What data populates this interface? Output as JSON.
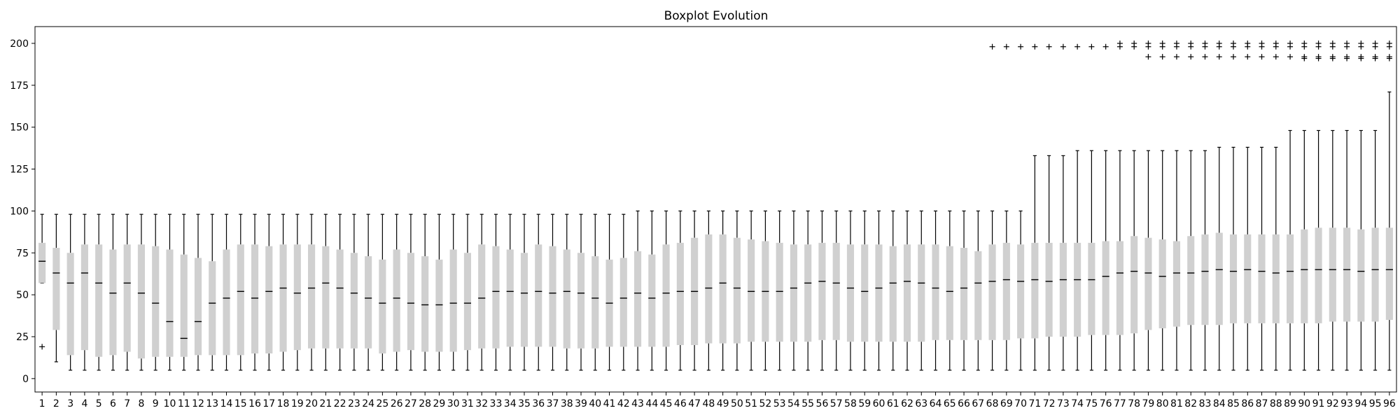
{
  "chart_data": {
    "type": "boxplot",
    "title": "Boxplot Evolution",
    "xlabel": "",
    "ylabel": "",
    "ylim": [
      -8,
      210
    ],
    "yticks": [
      0,
      25,
      50,
      75,
      100,
      125,
      150,
      175,
      200
    ],
    "categories": [
      "1",
      "2",
      "3",
      "4",
      "5",
      "6",
      "7",
      "8",
      "9",
      "10",
      "11",
      "12",
      "13",
      "14",
      "15",
      "16",
      "17",
      "18",
      "19",
      "20",
      "21",
      "22",
      "23",
      "24",
      "25",
      "26",
      "27",
      "28",
      "29",
      "30",
      "31",
      "32",
      "33",
      "34",
      "35",
      "36",
      "37",
      "38",
      "39",
      "40",
      "41",
      "42",
      "43",
      "44",
      "45",
      "46",
      "47",
      "48",
      "49",
      "50",
      "51",
      "52",
      "53",
      "54",
      "55",
      "56",
      "57",
      "58",
      "59",
      "60",
      "61",
      "62",
      "63",
      "64",
      "65",
      "66",
      "67",
      "68",
      "69",
      "70",
      "71",
      "72",
      "73",
      "74",
      "75",
      "76",
      "77",
      "78",
      "79",
      "80",
      "81",
      "82",
      "83",
      "84",
      "85",
      "86",
      "87",
      "88",
      "89",
      "90",
      "91",
      "92",
      "93",
      "94",
      "95",
      "96"
    ],
    "grid": false,
    "colors": {
      "box": "#d0d0d0",
      "median": "#000000",
      "whisker": "#000000"
    },
    "boxes": [
      {
        "whislo": 57,
        "q1": 57,
        "med": 70,
        "q3": 81,
        "whishi": 98,
        "fliers": [
          19
        ]
      },
      {
        "whislo": 10,
        "q1": 29,
        "med": 63,
        "q3": 78,
        "whishi": 98,
        "fliers": []
      },
      {
        "whislo": 5,
        "q1": 14,
        "med": 57,
        "q3": 75,
        "whishi": 98,
        "fliers": []
      },
      {
        "whislo": 5,
        "q1": 17,
        "med": 63,
        "q3": 80,
        "whishi": 98,
        "fliers": []
      },
      {
        "whislo": 5,
        "q1": 13,
        "med": 57,
        "q3": 80,
        "whishi": 98,
        "fliers": []
      },
      {
        "whislo": 5,
        "q1": 14,
        "med": 51,
        "q3": 77,
        "whishi": 98,
        "fliers": []
      },
      {
        "whislo": 5,
        "q1": 16,
        "med": 57,
        "q3": 80,
        "whishi": 98,
        "fliers": []
      },
      {
        "whislo": 5,
        "q1": 12,
        "med": 51,
        "q3": 80,
        "whishi": 98,
        "fliers": []
      },
      {
        "whislo": 5,
        "q1": 13,
        "med": 45,
        "q3": 79,
        "whishi": 98,
        "fliers": []
      },
      {
        "whislo": 5,
        "q1": 13,
        "med": 34,
        "q3": 77,
        "whishi": 98,
        "fliers": []
      },
      {
        "whislo": 5,
        "q1": 13,
        "med": 24,
        "q3": 74,
        "whishi": 98,
        "fliers": []
      },
      {
        "whislo": 5,
        "q1": 14,
        "med": 34,
        "q3": 72,
        "whishi": 98,
        "fliers": []
      },
      {
        "whislo": 5,
        "q1": 14,
        "med": 45,
        "q3": 70,
        "whishi": 98,
        "fliers": []
      },
      {
        "whislo": 5,
        "q1": 14,
        "med": 48,
        "q3": 77,
        "whishi": 98,
        "fliers": []
      },
      {
        "whislo": 5,
        "q1": 14,
        "med": 52,
        "q3": 80,
        "whishi": 98,
        "fliers": []
      },
      {
        "whislo": 5,
        "q1": 15,
        "med": 48,
        "q3": 80,
        "whishi": 98,
        "fliers": []
      },
      {
        "whislo": 5,
        "q1": 15,
        "med": 52,
        "q3": 79,
        "whishi": 98,
        "fliers": []
      },
      {
        "whislo": 5,
        "q1": 16,
        "med": 54,
        "q3": 80,
        "whishi": 98,
        "fliers": []
      },
      {
        "whislo": 5,
        "q1": 17,
        "med": 51,
        "q3": 80,
        "whishi": 98,
        "fliers": []
      },
      {
        "whislo": 5,
        "q1": 18,
        "med": 54,
        "q3": 80,
        "whishi": 98,
        "fliers": []
      },
      {
        "whislo": 5,
        "q1": 18,
        "med": 57,
        "q3": 79,
        "whishi": 98,
        "fliers": []
      },
      {
        "whislo": 5,
        "q1": 18,
        "med": 54,
        "q3": 77,
        "whishi": 98,
        "fliers": []
      },
      {
        "whislo": 5,
        "q1": 18,
        "med": 51,
        "q3": 75,
        "whishi": 98,
        "fliers": []
      },
      {
        "whislo": 5,
        "q1": 18,
        "med": 48,
        "q3": 73,
        "whishi": 98,
        "fliers": []
      },
      {
        "whislo": 5,
        "q1": 15,
        "med": 45,
        "q3": 71,
        "whishi": 98,
        "fliers": []
      },
      {
        "whislo": 5,
        "q1": 16,
        "med": 48,
        "q3": 77,
        "whishi": 98,
        "fliers": []
      },
      {
        "whislo": 5,
        "q1": 17,
        "med": 45,
        "q3": 75,
        "whishi": 98,
        "fliers": []
      },
      {
        "whislo": 5,
        "q1": 16,
        "med": 44,
        "q3": 73,
        "whishi": 98,
        "fliers": []
      },
      {
        "whislo": 5,
        "q1": 16,
        "med": 44,
        "q3": 71,
        "whishi": 98,
        "fliers": []
      },
      {
        "whislo": 5,
        "q1": 16,
        "med": 45,
        "q3": 77,
        "whishi": 98,
        "fliers": []
      },
      {
        "whislo": 5,
        "q1": 17,
        "med": 45,
        "q3": 75,
        "whishi": 98,
        "fliers": []
      },
      {
        "whislo": 5,
        "q1": 18,
        "med": 48,
        "q3": 80,
        "whishi": 98,
        "fliers": []
      },
      {
        "whislo": 5,
        "q1": 18,
        "med": 52,
        "q3": 79,
        "whishi": 98,
        "fliers": []
      },
      {
        "whislo": 5,
        "q1": 19,
        "med": 52,
        "q3": 77,
        "whishi": 98,
        "fliers": []
      },
      {
        "whislo": 5,
        "q1": 19,
        "med": 51,
        "q3": 75,
        "whishi": 98,
        "fliers": []
      },
      {
        "whislo": 5,
        "q1": 19,
        "med": 52,
        "q3": 80,
        "whishi": 98,
        "fliers": []
      },
      {
        "whislo": 5,
        "q1": 19,
        "med": 51,
        "q3": 79,
        "whishi": 98,
        "fliers": []
      },
      {
        "whislo": 5,
        "q1": 18,
        "med": 52,
        "q3": 77,
        "whishi": 98,
        "fliers": []
      },
      {
        "whislo": 5,
        "q1": 18,
        "med": 51,
        "q3": 75,
        "whishi": 98,
        "fliers": []
      },
      {
        "whislo": 5,
        "q1": 18,
        "med": 48,
        "q3": 73,
        "whishi": 98,
        "fliers": []
      },
      {
        "whislo": 5,
        "q1": 19,
        "med": 45,
        "q3": 71,
        "whishi": 98,
        "fliers": []
      },
      {
        "whislo": 5,
        "q1": 19,
        "med": 48,
        "q3": 72,
        "whishi": 98,
        "fliers": []
      },
      {
        "whislo": 5,
        "q1": 19,
        "med": 51,
        "q3": 76,
        "whishi": 100,
        "fliers": []
      },
      {
        "whislo": 5,
        "q1": 19,
        "med": 48,
        "q3": 74,
        "whishi": 100,
        "fliers": []
      },
      {
        "whislo": 5,
        "q1": 19,
        "med": 51,
        "q3": 80,
        "whishi": 100,
        "fliers": []
      },
      {
        "whislo": 5,
        "q1": 20,
        "med": 52,
        "q3": 81,
        "whishi": 100,
        "fliers": []
      },
      {
        "whislo": 5,
        "q1": 20,
        "med": 52,
        "q3": 84,
        "whishi": 100,
        "fliers": []
      },
      {
        "whislo": 5,
        "q1": 21,
        "med": 54,
        "q3": 86,
        "whishi": 100,
        "fliers": []
      },
      {
        "whislo": 5,
        "q1": 21,
        "med": 57,
        "q3": 86,
        "whishi": 100,
        "fliers": []
      },
      {
        "whislo": 5,
        "q1": 21,
        "med": 54,
        "q3": 84,
        "whishi": 100,
        "fliers": []
      },
      {
        "whislo": 5,
        "q1": 22,
        "med": 52,
        "q3": 83,
        "whishi": 100,
        "fliers": []
      },
      {
        "whislo": 5,
        "q1": 22,
        "med": 52,
        "q3": 82,
        "whishi": 100,
        "fliers": []
      },
      {
        "whislo": 5,
        "q1": 22,
        "med": 52,
        "q3": 81,
        "whishi": 100,
        "fliers": []
      },
      {
        "whislo": 5,
        "q1": 22,
        "med": 54,
        "q3": 80,
        "whishi": 100,
        "fliers": []
      },
      {
        "whislo": 5,
        "q1": 22,
        "med": 57,
        "q3": 80,
        "whishi": 100,
        "fliers": []
      },
      {
        "whislo": 5,
        "q1": 23,
        "med": 58,
        "q3": 81,
        "whishi": 100,
        "fliers": []
      },
      {
        "whislo": 5,
        "q1": 23,
        "med": 57,
        "q3": 81,
        "whishi": 100,
        "fliers": []
      },
      {
        "whislo": 5,
        "q1": 22,
        "med": 54,
        "q3": 80,
        "whishi": 100,
        "fliers": []
      },
      {
        "whislo": 5,
        "q1": 22,
        "med": 52,
        "q3": 80,
        "whishi": 100,
        "fliers": []
      },
      {
        "whislo": 5,
        "q1": 22,
        "med": 54,
        "q3": 80,
        "whishi": 100,
        "fliers": []
      },
      {
        "whislo": 5,
        "q1": 22,
        "med": 57,
        "q3": 79,
        "whishi": 100,
        "fliers": []
      },
      {
        "whislo": 5,
        "q1": 22,
        "med": 58,
        "q3": 80,
        "whishi": 100,
        "fliers": []
      },
      {
        "whislo": 5,
        "q1": 22,
        "med": 57,
        "q3": 80,
        "whishi": 100,
        "fliers": []
      },
      {
        "whislo": 5,
        "q1": 23,
        "med": 54,
        "q3": 80,
        "whishi": 100,
        "fliers": []
      },
      {
        "whislo": 5,
        "q1": 23,
        "med": 52,
        "q3": 79,
        "whishi": 100,
        "fliers": []
      },
      {
        "whislo": 5,
        "q1": 23,
        "med": 54,
        "q3": 78,
        "whishi": 100,
        "fliers": []
      },
      {
        "whislo": 5,
        "q1": 23,
        "med": 57,
        "q3": 76,
        "whishi": 100,
        "fliers": []
      },
      {
        "whislo": 5,
        "q1": 23,
        "med": 58,
        "q3": 80,
        "whishi": 100,
        "fliers": [
          198
        ]
      },
      {
        "whislo": 5,
        "q1": 23,
        "med": 59,
        "q3": 81,
        "whishi": 100,
        "fliers": [
          198
        ]
      },
      {
        "whislo": 5,
        "q1": 24,
        "med": 58,
        "q3": 80,
        "whishi": 100,
        "fliers": [
          198
        ]
      },
      {
        "whislo": 5,
        "q1": 24,
        "med": 59,
        "q3": 81,
        "whishi": 133,
        "fliers": [
          198
        ]
      },
      {
        "whislo": 5,
        "q1": 25,
        "med": 58,
        "q3": 81,
        "whishi": 133,
        "fliers": [
          198
        ]
      },
      {
        "whislo": 5,
        "q1": 25,
        "med": 59,
        "q3": 81,
        "whishi": 133,
        "fliers": [
          198
        ]
      },
      {
        "whislo": 5,
        "q1": 25,
        "med": 59,
        "q3": 81,
        "whishi": 136,
        "fliers": [
          198
        ]
      },
      {
        "whislo": 5,
        "q1": 26,
        "med": 59,
        "q3": 81,
        "whishi": 136,
        "fliers": [
          198
        ]
      },
      {
        "whislo": 5,
        "q1": 26,
        "med": 61,
        "q3": 82,
        "whishi": 136,
        "fliers": [
          198
        ]
      },
      {
        "whislo": 5,
        "q1": 26,
        "med": 63,
        "q3": 82,
        "whishi": 136,
        "fliers": [
          198,
          200
        ]
      },
      {
        "whislo": 5,
        "q1": 27,
        "med": 64,
        "q3": 85,
        "whishi": 136,
        "fliers": [
          198,
          200
        ]
      },
      {
        "whislo": 5,
        "q1": 29,
        "med": 63,
        "q3": 84,
        "whishi": 136,
        "fliers": [
          192,
          198,
          200
        ]
      },
      {
        "whislo": 5,
        "q1": 30,
        "med": 61,
        "q3": 83,
        "whishi": 136,
        "fliers": [
          192,
          198,
          200
        ]
      },
      {
        "whislo": 5,
        "q1": 31,
        "med": 63,
        "q3": 82,
        "whishi": 136,
        "fliers": [
          192,
          198,
          200
        ]
      },
      {
        "whislo": 5,
        "q1": 32,
        "med": 63,
        "q3": 85,
        "whishi": 136,
        "fliers": [
          192,
          198,
          200
        ]
      },
      {
        "whislo": 5,
        "q1": 32,
        "med": 64,
        "q3": 86,
        "whishi": 136,
        "fliers": [
          192,
          198,
          200
        ]
      },
      {
        "whislo": 5,
        "q1": 32,
        "med": 65,
        "q3": 87,
        "whishi": 138,
        "fliers": [
          192,
          198,
          200
        ]
      },
      {
        "whislo": 5,
        "q1": 33,
        "med": 64,
        "q3": 86,
        "whishi": 138,
        "fliers": [
          192,
          198,
          200
        ]
      },
      {
        "whislo": 5,
        "q1": 33,
        "med": 65,
        "q3": 86,
        "whishi": 138,
        "fliers": [
          192,
          198,
          200
        ]
      },
      {
        "whislo": 5,
        "q1": 33,
        "med": 64,
        "q3": 86,
        "whishi": 138,
        "fliers": [
          192,
          198,
          200
        ]
      },
      {
        "whislo": 5,
        "q1": 33,
        "med": 63,
        "q3": 86,
        "whishi": 138,
        "fliers": [
          192,
          198,
          200
        ]
      },
      {
        "whislo": 5,
        "q1": 33,
        "med": 64,
        "q3": 86,
        "whishi": 148,
        "fliers": [
          192,
          198,
          200
        ]
      },
      {
        "whislo": 5,
        "q1": 33,
        "med": 65,
        "q3": 89,
        "whishi": 148,
        "fliers": [
          191,
          192,
          198,
          200
        ]
      },
      {
        "whislo": 5,
        "q1": 33,
        "med": 65,
        "q3": 90,
        "whishi": 148,
        "fliers": [
          191,
          192,
          198,
          200
        ]
      },
      {
        "whislo": 5,
        "q1": 34,
        "med": 65,
        "q3": 90,
        "whishi": 148,
        "fliers": [
          191,
          192,
          198,
          200
        ]
      },
      {
        "whislo": 5,
        "q1": 34,
        "med": 65,
        "q3": 90,
        "whishi": 148,
        "fliers": [
          191,
          192,
          198,
          200
        ]
      },
      {
        "whislo": 5,
        "q1": 34,
        "med": 64,
        "q3": 89,
        "whishi": 148,
        "fliers": [
          191,
          192,
          198,
          200
        ]
      },
      {
        "whislo": 5,
        "q1": 34,
        "med": 65,
        "q3": 90,
        "whishi": 148,
        "fliers": [
          191,
          192,
          198,
          200
        ]
      },
      {
        "whislo": 5,
        "q1": 35,
        "med": 65,
        "q3": 90,
        "whishi": 171,
        "fliers": [
          191,
          192,
          198,
          200
        ]
      }
    ]
  }
}
